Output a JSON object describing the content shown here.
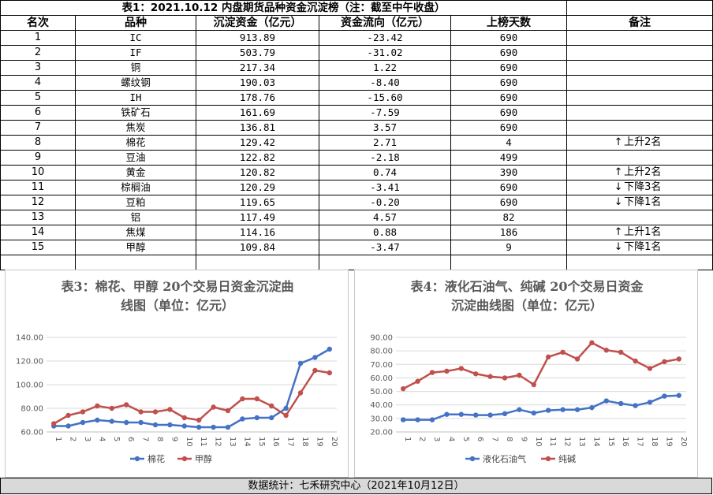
{
  "table": {
    "title": "表1：2021.10.12 内盘期货品种资金沉淀榜（注：截至中午收盘）",
    "headers": [
      "名次",
      "品种",
      "沉淀资金（亿元）",
      "资金流向（亿元）",
      "上榜天数",
      "备注"
    ],
    "rows": [
      {
        "rank": "1",
        "name": "IC",
        "capital": "913.89",
        "flow": "-23.42",
        "days": "690",
        "note": "",
        "arrow": ""
      },
      {
        "rank": "2",
        "name": "IF",
        "capital": "503.79",
        "flow": "-31.02",
        "days": "690",
        "note": "",
        "arrow": ""
      },
      {
        "rank": "3",
        "name": "铜",
        "capital": "217.34",
        "flow": "1.22",
        "days": "690",
        "note": "",
        "arrow": ""
      },
      {
        "rank": "4",
        "name": "螺纹钢",
        "capital": "190.03",
        "flow": "-8.40",
        "days": "690",
        "note": "",
        "arrow": ""
      },
      {
        "rank": "5",
        "name": "IH",
        "capital": "178.76",
        "flow": "-15.60",
        "days": "690",
        "note": "",
        "arrow": ""
      },
      {
        "rank": "6",
        "name": "铁矿石",
        "capital": "161.69",
        "flow": "-7.59",
        "days": "690",
        "note": "",
        "arrow": ""
      },
      {
        "rank": "7",
        "name": "焦炭",
        "capital": "136.81",
        "flow": "3.57",
        "days": "690",
        "note": "",
        "arrow": ""
      },
      {
        "rank": "8",
        "name": "棉花",
        "capital": "129.42",
        "flow": "2.71",
        "days": "4",
        "note": "上升2名",
        "arrow": "↑"
      },
      {
        "rank": "9",
        "name": "豆油",
        "capital": "122.82",
        "flow": "-2.18",
        "days": "499",
        "note": "",
        "arrow": ""
      },
      {
        "rank": "10",
        "name": "黄金",
        "capital": "120.82",
        "flow": "0.74",
        "days": "390",
        "note": "上升2名",
        "arrow": "↑"
      },
      {
        "rank": "11",
        "name": "棕榈油",
        "capital": "120.29",
        "flow": "-3.41",
        "days": "690",
        "note": "下降3名",
        "arrow": "↓"
      },
      {
        "rank": "12",
        "name": "豆粕",
        "capital": "119.65",
        "flow": "-0.20",
        "days": "690",
        "note": "下降1名",
        "arrow": "↓"
      },
      {
        "rank": "13",
        "name": "铝",
        "capital": "117.49",
        "flow": "4.57",
        "days": "82",
        "note": "",
        "arrow": ""
      },
      {
        "rank": "14",
        "name": "焦煤",
        "capital": "114.16",
        "flow": "0.88",
        "days": "186",
        "note": "上升1名",
        "arrow": "↑"
      },
      {
        "rank": "15",
        "name": "甲醇",
        "capital": "109.84",
        "flow": "-3.47",
        "days": "9",
        "note": "下降1名",
        "arrow": "↓"
      }
    ]
  },
  "footer": "数据统计：七禾研究中心（2021年10月12日）",
  "colors": {
    "blue": "#4472c4",
    "red": "#c0504d",
    "grid": "#d9d9d9",
    "axis": "#bfbfbf"
  },
  "chart_data": [
    {
      "type": "line",
      "title_lines": [
        "表3：棉花、甲醇 20个交易日资金沉淀曲",
        "线图（单位：亿元）"
      ],
      "categories": [
        "1",
        "2",
        "3",
        "4",
        "5",
        "6",
        "7",
        "8",
        "9",
        "10",
        "11",
        "12",
        "13",
        "14",
        "15",
        "16",
        "17",
        "18",
        "19",
        "20"
      ],
      "ylim": [
        60,
        140
      ],
      "yticks": [
        "60.00",
        "80.00",
        "100.00",
        "120.00",
        "140.00"
      ],
      "grid": true,
      "legend_position": "bottom",
      "series": [
        {
          "name": "棉花",
          "color": "#4472c4",
          "values": [
            65,
            65,
            68,
            70,
            69,
            68,
            68,
            66,
            66,
            65,
            64,
            64,
            64,
            71,
            72,
            72,
            80,
            118,
            123,
            130
          ]
        },
        {
          "name": "甲醇",
          "color": "#c0504d",
          "values": [
            67,
            74,
            77,
            82,
            80,
            83,
            77,
            77,
            79,
            72,
            70,
            81,
            78,
            88,
            88,
            82,
            74,
            93,
            112,
            110
          ]
        }
      ]
    },
    {
      "type": "line",
      "title_lines": [
        "表4：液化石油气、纯碱 20个交易日资金",
        "沉淀曲线图（单位：亿元）"
      ],
      "categories": [
        "1",
        "2",
        "3",
        "4",
        "5",
        "6",
        "7",
        "8",
        "9",
        "10",
        "11",
        "12",
        "13",
        "14",
        "15",
        "16",
        "17",
        "18",
        "19",
        "20"
      ],
      "ylim": [
        20,
        90
      ],
      "yticks": [
        "20.00",
        "30.00",
        "40.00",
        "50.00",
        "60.00",
        "70.00",
        "80.00",
        "90.00"
      ],
      "grid": true,
      "legend_position": "bottom",
      "series": [
        {
          "name": "液化石油气",
          "color": "#4472c4",
          "values": [
            29,
            29,
            29,
            33,
            33,
            32.5,
            32.5,
            33.5,
            36.5,
            34,
            36,
            36.5,
            36.5,
            38,
            43,
            41,
            39.5,
            42,
            46.5,
            47
          ]
        },
        {
          "name": "纯碱",
          "color": "#c0504d",
          "values": [
            52,
            57.5,
            64,
            65,
            67,
            63,
            61,
            60,
            62,
            55,
            75.5,
            79,
            74,
            86,
            80.5,
            79,
            72.5,
            67,
            72,
            74
          ]
        }
      ]
    }
  ]
}
